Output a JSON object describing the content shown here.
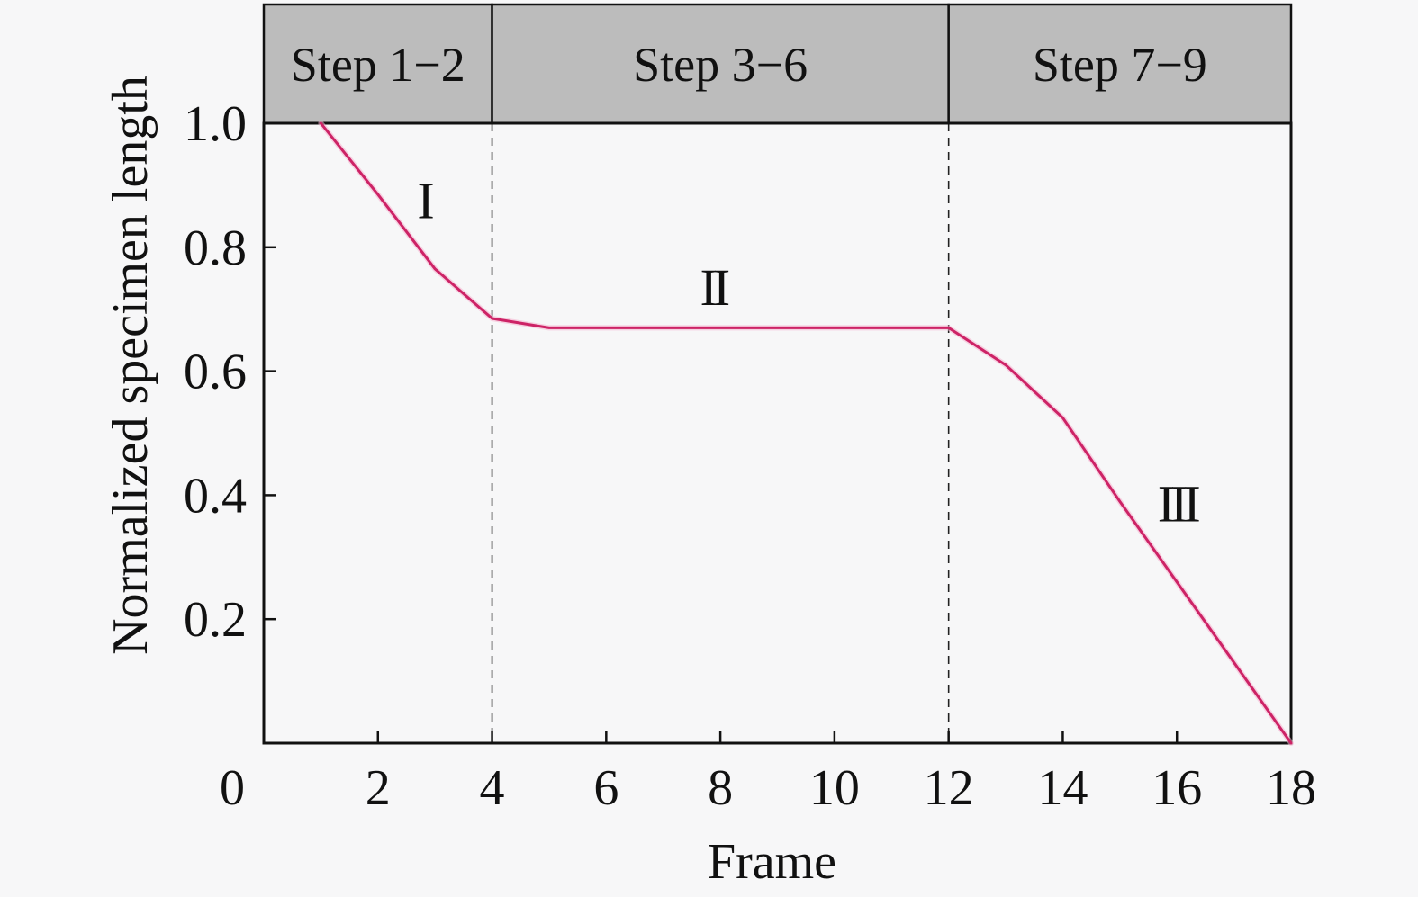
{
  "chart_data": {
    "type": "line",
    "title": "",
    "xlabel": "Frame",
    "ylabel": "Normalized specimen length",
    "xlim": [
      0,
      18
    ],
    "ylim": [
      0,
      1.0
    ],
    "grid": false,
    "legend": "none",
    "x_ticks": [
      "0",
      "2",
      "4",
      "6",
      "8",
      "10",
      "12",
      "14",
      "16",
      "18"
    ],
    "y_ticks": [
      "0.2",
      "0.4",
      "0.6",
      "0.8",
      "1.0"
    ],
    "x_tick_values": [
      0,
      2,
      4,
      6,
      8,
      10,
      12,
      14,
      16,
      18
    ],
    "y_tick_values": [
      0.2,
      0.4,
      0.6,
      0.8,
      1.0
    ],
    "series": [
      {
        "name": "normalized specimen length",
        "x": [
          1,
          2,
          3,
          4,
          5,
          12,
          13,
          14,
          15,
          16,
          17,
          18
        ],
        "y": [
          1.0,
          0.885,
          0.765,
          0.685,
          0.67,
          0.67,
          0.61,
          0.525,
          0.39,
          0.26,
          0.13,
          0.0
        ]
      }
    ],
    "dividers_x": [
      4,
      12
    ],
    "header_bands": [
      {
        "label": "Step 1−2",
        "x_start": 0,
        "x_end": 4
      },
      {
        "label": "Step 3−6",
        "x_start": 4,
        "x_end": 12
      },
      {
        "label": "Step 7−9",
        "x_start": 12,
        "x_end": 18
      }
    ],
    "region_labels": [
      {
        "text": "I",
        "x": 2.8,
        "y": 0.875
      },
      {
        "text": "II",
        "x": 7.87,
        "y": 0.735
      },
      {
        "text": "III",
        "x": 16.0,
        "y": 0.386
      }
    ],
    "colors": {
      "line": "#cd2366",
      "line_halo": "#f5b3ce",
      "band_fill": "#bcbcbc",
      "frame_stroke": "#111111",
      "dashed_stroke": "#222222",
      "background": "#f7f7f8",
      "text": "#111111"
    }
  }
}
